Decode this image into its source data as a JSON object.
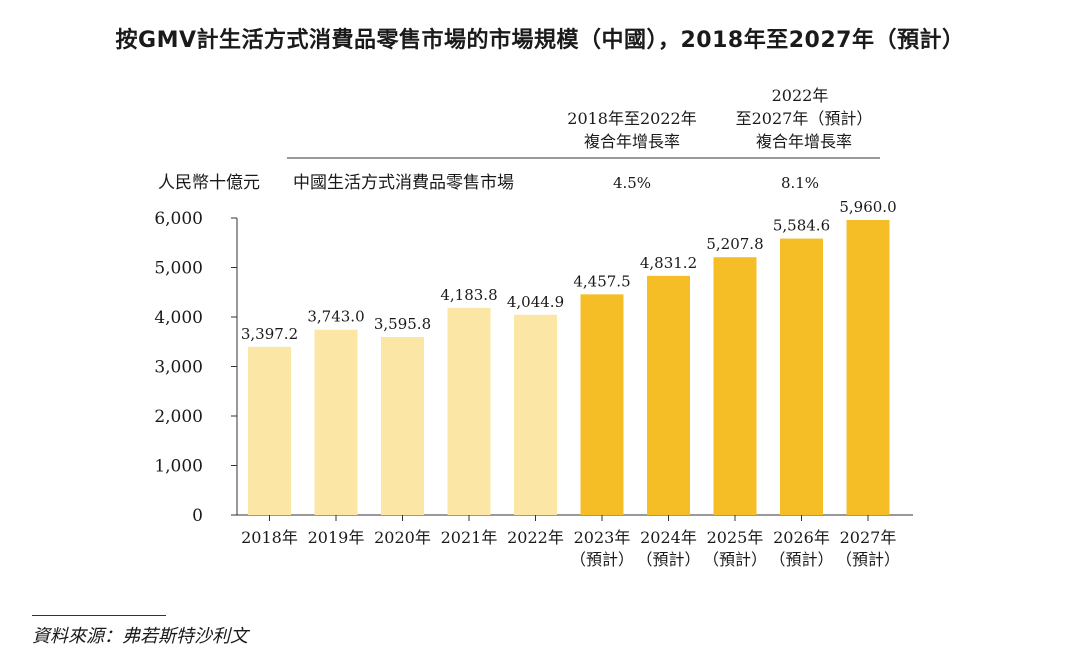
{
  "chart_data": {
    "type": "bar",
    "title": "按GMV計生活方式消費品零售市場的市場規模（中國），2018年至2027年（預計）",
    "ylabel": "人民幣十億元",
    "series_label": "中國生活方式消費品零售市場",
    "categories": [
      [
        "2018年"
      ],
      [
        "2019年"
      ],
      [
        "2020年"
      ],
      [
        "2021年"
      ],
      [
        "2022年"
      ],
      [
        "2023年",
        "（預計）"
      ],
      [
        "2024年",
        "（預計）"
      ],
      [
        "2025年",
        "（預計）"
      ],
      [
        "2026年",
        "（預計）"
      ],
      [
        "2027年",
        "（預計）"
      ]
    ],
    "values": [
      3397.2,
      3743.0,
      3595.8,
      4183.8,
      4044.9,
      4457.5,
      4831.2,
      5207.8,
      5584.6,
      5960.0
    ],
    "value_labels": [
      "3,397.2",
      "3,743.0",
      "3,595.8",
      "4,183.8",
      "4,044.9",
      "4,457.5",
      "4,831.2",
      "5,207.8",
      "5,584.6",
      "5,960.0"
    ],
    "ylim": [
      0,
      6000
    ],
    "yticks": [
      0,
      1000,
      2000,
      3000,
      4000,
      5000,
      6000
    ],
    "ytick_labels": [
      "0",
      "1,000",
      "2,000",
      "3,000",
      "4,000",
      "5,000",
      "6,000"
    ],
    "cagr": {
      "headers": [
        [
          "2018年至2022年",
          "複合年增長率"
        ],
        [
          "2022年",
          "至2027年（預計）",
          "複合年增長率"
        ]
      ],
      "values": [
        "4.5%",
        "8.1%"
      ]
    },
    "colors": {
      "historical": "#FCE6A6",
      "forecast": "#F5BE27"
    },
    "grid": false,
    "legend": "none"
  },
  "source": "資料來源：弗若斯特沙利文"
}
